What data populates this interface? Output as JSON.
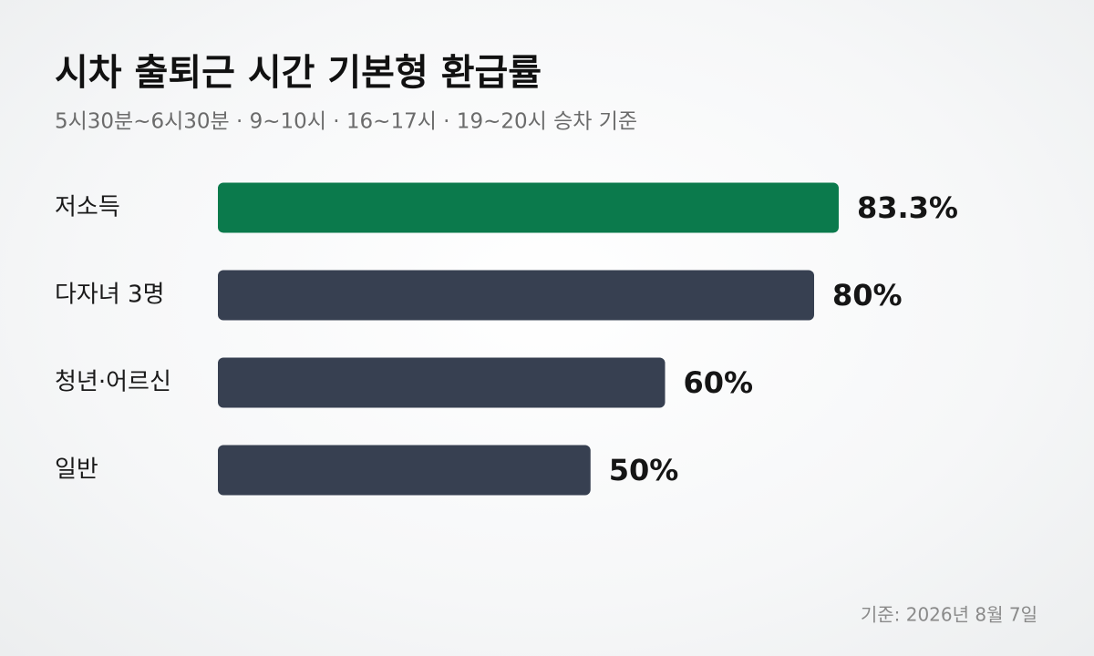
{
  "chart_data": {
    "type": "bar",
    "orientation": "horizontal",
    "title": "시차 출퇴근 시간 기본형 환급률",
    "subtitle": "5시30분~6시30분 · 9~10시 · 16~17시 · 19~20시 승차 기준",
    "categories": [
      "저소득",
      "다자녀 3명",
      "청년·어르신",
      "일반"
    ],
    "values": [
      83.3,
      80,
      60,
      50
    ],
    "value_labels": [
      "83.3%",
      "80%",
      "60%",
      "50%"
    ],
    "colors": [
      "#0b7a4c",
      "#374051",
      "#374051",
      "#374051"
    ],
    "footnote": "기준: 2026년 8월 7일"
  }
}
